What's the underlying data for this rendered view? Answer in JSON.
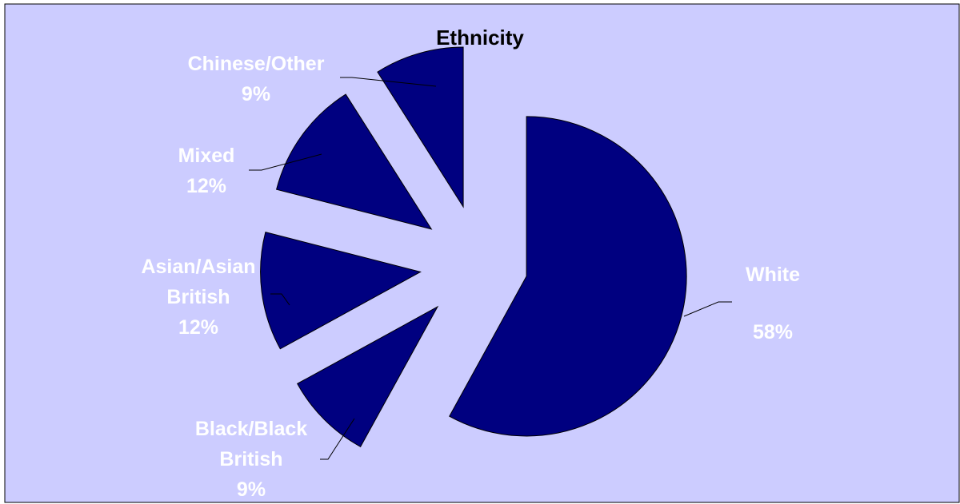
{
  "chart_data": {
    "type": "pie",
    "title": "Ethnicity",
    "slices": [
      {
        "label": "White",
        "value": 58,
        "value_label": "58%"
      },
      {
        "label": "Black/Black British",
        "value": 9,
        "value_label": "9%"
      },
      {
        "label": "Asian/Asian British",
        "value": 12,
        "value_label": "12%"
      },
      {
        "label": "Mixed",
        "value": 12,
        "value_label": "12%"
      },
      {
        "label": "Chinese/Other",
        "value": 9,
        "value_label": "9%"
      }
    ],
    "exploded": true,
    "colors": {
      "slice_fill": "#000080",
      "slice_stroke": "#000000",
      "plot_background": "#ccccff",
      "label_text": "#ffffff",
      "title_text": "#000000",
      "leader_line": "#000000"
    }
  }
}
